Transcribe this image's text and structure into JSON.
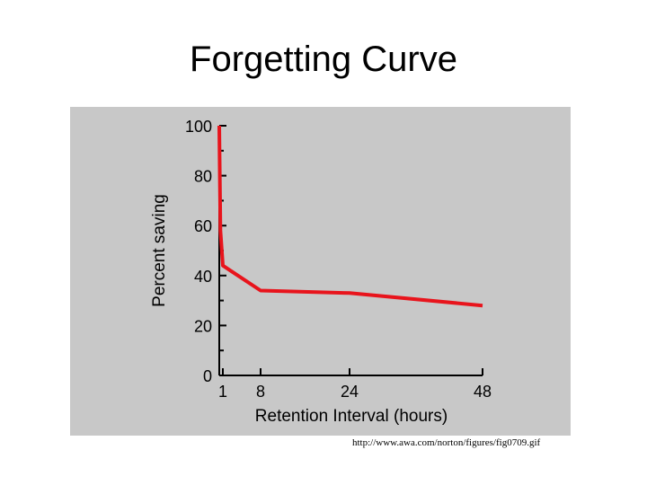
{
  "slide": {
    "title": "Forgetting Curve",
    "source_url": "http://www.awa.com/norton/figures/fig0709.gif"
  },
  "colors": {
    "panel_background": "#c8c8c8",
    "curve": "#e8141c",
    "axis": "#000000"
  },
  "chart_data": {
    "type": "line",
    "title": "",
    "xlabel": "Retention Interval (hours)",
    "ylabel": "Percent saving",
    "x_scale": "nonlinear",
    "xlim": [
      0,
      48
    ],
    "ylim": [
      0,
      100
    ],
    "x_ticks": [
      0,
      1,
      8,
      24,
      48
    ],
    "x_tick_labels": [
      "",
      "1",
      "8",
      "24",
      "48"
    ],
    "y_ticks": [
      0,
      20,
      40,
      60,
      80,
      100
    ],
    "y_tick_labels": [
      "0",
      "20",
      "40",
      "60",
      "80",
      "100"
    ],
    "y_minor_ticks": [
      10,
      30,
      50,
      70,
      90
    ],
    "grid": false,
    "legend": "none",
    "series": [
      {
        "x": [
          0,
          0.33,
          1,
          8,
          24,
          48
        ],
        "y": [
          100,
          58,
          44,
          34,
          33,
          28
        ]
      }
    ]
  }
}
